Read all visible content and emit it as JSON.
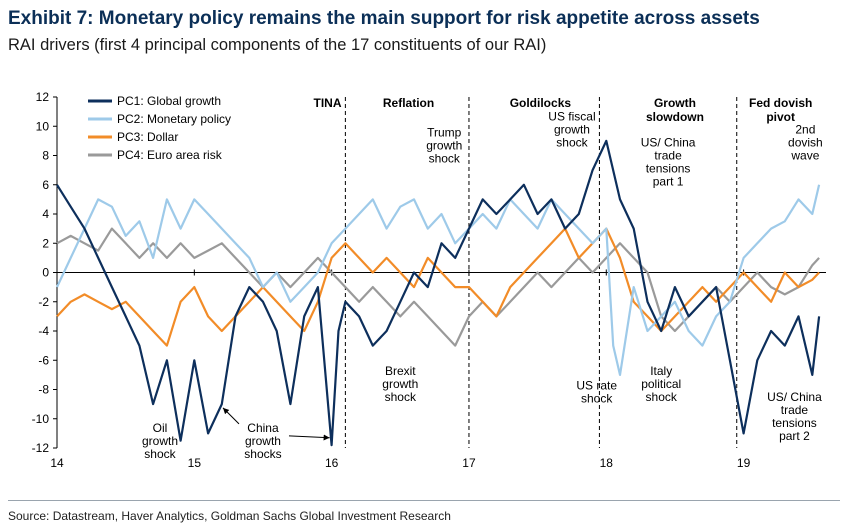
{
  "title": "Exhibit 7: Monetary policy remains the main support for risk appetite across assets",
  "subtitle": "RAI drivers (first 4 principal components of the 17 constituents of our RAI)",
  "source": "Source: Datastream, Haver Analytics, Goldman Sachs Global Investment Research",
  "chart_data": {
    "type": "line",
    "xlim": [
      14,
      19.6
    ],
    "ylim": [
      -12,
      12
    ],
    "x_ticks": [
      14,
      15,
      16,
      17,
      18,
      19
    ],
    "x_tick_labels": [
      "14",
      "15",
      "16",
      "17",
      "18",
      "19"
    ],
    "y_ticks": [
      12,
      10,
      8,
      6,
      4,
      2,
      0,
      -2,
      -4,
      -6,
      -8,
      -10,
      -12
    ],
    "y_tick_labels": [
      "12",
      "10",
      "8",
      "6",
      "4",
      "2",
      "0",
      "-2",
      "-4",
      "-6",
      "-8",
      "-10",
      "-12"
    ],
    "grid": false,
    "legend_position": "top-left",
    "series": [
      {
        "name": "PC1: Global growth",
        "color": "#0d2f5c",
        "x": [
          14.0,
          14.1,
          14.2,
          14.3,
          14.4,
          14.5,
          14.6,
          14.7,
          14.8,
          14.9,
          15.0,
          15.1,
          15.2,
          15.3,
          15.4,
          15.5,
          15.6,
          15.7,
          15.8,
          15.9,
          16.0,
          16.05,
          16.1,
          16.2,
          16.3,
          16.4,
          16.5,
          16.6,
          16.7,
          16.8,
          16.9,
          17.0,
          17.1,
          17.2,
          17.3,
          17.4,
          17.5,
          17.6,
          17.7,
          17.8,
          17.9,
          18.0,
          18.1,
          18.2,
          18.3,
          18.4,
          18.5,
          18.6,
          18.7,
          18.8,
          18.9,
          19.0,
          19.1,
          19.2,
          19.3,
          19.4,
          19.5,
          19.55
        ],
        "y": [
          6,
          4.5,
          3,
          1,
          -1,
          -3,
          -5,
          -9,
          -6,
          -11.5,
          -6,
          -11,
          -9,
          -3,
          -1,
          -2,
          -4,
          -9,
          -3,
          -1,
          -11.8,
          -4,
          -2,
          -3,
          -5,
          -4,
          -2,
          0,
          -1,
          2,
          1,
          3,
          5,
          4,
          5,
          6,
          4,
          5,
          3,
          4,
          7,
          9,
          5,
          3,
          -2,
          -4,
          -1,
          -3,
          -2,
          -1,
          -6,
          -11,
          -6,
          -4,
          -5,
          -3,
          -7,
          -3
        ]
      },
      {
        "name": "PC2: Monetary policy",
        "color": "#9ecae9",
        "x": [
          14.0,
          14.1,
          14.2,
          14.3,
          14.4,
          14.5,
          14.6,
          14.7,
          14.8,
          14.9,
          15.0,
          15.1,
          15.2,
          15.3,
          15.4,
          15.5,
          15.6,
          15.7,
          15.8,
          15.9,
          16.0,
          16.1,
          16.2,
          16.3,
          16.4,
          16.5,
          16.6,
          16.7,
          16.8,
          16.9,
          17.0,
          17.1,
          17.2,
          17.3,
          17.4,
          17.5,
          17.6,
          17.7,
          17.8,
          17.9,
          18.0,
          18.05,
          18.1,
          18.2,
          18.3,
          18.4,
          18.5,
          18.6,
          18.7,
          18.8,
          18.9,
          19.0,
          19.1,
          19.2,
          19.3,
          19.4,
          19.5,
          19.55
        ],
        "y": [
          -1,
          1,
          3,
          5,
          4.5,
          2.5,
          3.5,
          1,
          5,
          3,
          5,
          4,
          3,
          2,
          1,
          -1,
          0,
          -2,
          -1,
          0,
          2,
          3,
          4,
          5,
          3,
          4.5,
          5,
          3,
          4,
          2,
          3,
          4,
          3,
          5,
          4,
          3,
          5,
          4,
          3,
          2,
          3,
          -5,
          -7,
          -1,
          -4,
          -3,
          -2,
          -4,
          -5,
          -3,
          -2,
          1,
          2,
          3,
          3.5,
          5,
          4,
          6
        ]
      },
      {
        "name": "PC3: Dollar",
        "color": "#f28c28",
        "x": [
          14.0,
          14.1,
          14.2,
          14.3,
          14.4,
          14.5,
          14.6,
          14.7,
          14.8,
          14.9,
          15.0,
          15.1,
          15.2,
          15.3,
          15.4,
          15.5,
          15.6,
          15.7,
          15.8,
          15.9,
          16.0,
          16.1,
          16.2,
          16.3,
          16.4,
          16.5,
          16.6,
          16.7,
          16.8,
          16.9,
          17.0,
          17.1,
          17.2,
          17.3,
          17.4,
          17.5,
          17.6,
          17.7,
          17.8,
          17.9,
          18.0,
          18.1,
          18.2,
          18.3,
          18.4,
          18.5,
          18.6,
          18.7,
          18.8,
          18.9,
          19.0,
          19.1,
          19.2,
          19.3,
          19.4,
          19.5,
          19.55
        ],
        "y": [
          -3,
          -2,
          -1.5,
          -2,
          -2.5,
          -2,
          -3,
          -4,
          -5,
          -2,
          -1,
          -3,
          -4,
          -3,
          -2,
          -1,
          -2,
          -3,
          -4,
          -2,
          1,
          2,
          1,
          0,
          1,
          0,
          -1,
          1,
          0,
          -1,
          -1,
          -2,
          -3,
          -1,
          0,
          1,
          2,
          3,
          1,
          2,
          3,
          1,
          -2,
          -3,
          -4,
          -3,
          -2,
          -1,
          -2,
          -1,
          0,
          -1,
          -2,
          0,
          -1,
          -0.5,
          0
        ]
      },
      {
        "name": "PC4: Euro area risk",
        "color": "#9a9a9a",
        "x": [
          14.0,
          14.1,
          14.2,
          14.3,
          14.4,
          14.5,
          14.6,
          14.7,
          14.8,
          14.9,
          15.0,
          15.1,
          15.2,
          15.3,
          15.4,
          15.5,
          15.6,
          15.7,
          15.8,
          15.9,
          16.0,
          16.1,
          16.2,
          16.3,
          16.4,
          16.5,
          16.6,
          16.7,
          16.8,
          16.9,
          17.0,
          17.1,
          17.2,
          17.3,
          17.4,
          17.5,
          17.6,
          17.7,
          17.8,
          17.9,
          18.0,
          18.1,
          18.2,
          18.3,
          18.4,
          18.5,
          18.6,
          18.7,
          18.8,
          18.9,
          19.0,
          19.1,
          19.2,
          19.3,
          19.4,
          19.5,
          19.55
        ],
        "y": [
          2,
          2.5,
          2,
          1.5,
          3,
          2,
          1,
          2,
          1,
          2,
          1,
          1.5,
          2,
          1,
          0,
          -1,
          0,
          -1,
          0,
          1,
          0,
          -1,
          -2,
          -1,
          -2,
          -3,
          -2,
          -3,
          -4,
          -5,
          -3,
          -2,
          -3,
          -2,
          -1,
          0,
          -1,
          0,
          1,
          0,
          1,
          2,
          1,
          0,
          -3,
          -4,
          -3,
          -2,
          -1,
          -2,
          -1,
          0,
          -1,
          -1.5,
          -1,
          0.5,
          1
        ]
      }
    ],
    "phase_dividers_x": [
      16.1,
      17.0,
      17.95,
      18.95
    ],
    "phases": [
      {
        "label_lines": [
          "TINA"
        ],
        "x": 15.97
      },
      {
        "label_lines": [
          "Reflation"
        ],
        "x": 16.56
      },
      {
        "label_lines": [
          "Goldilocks"
        ],
        "x": 17.52
      },
      {
        "label_lines": [
          "Growth",
          "slowdown"
        ],
        "x": 18.5
      },
      {
        "label_lines": [
          "Fed dovish",
          "pivot"
        ],
        "x": 19.27
      }
    ],
    "annotations": [
      {
        "lines": [
          "Trump",
          "growth",
          "shock"
        ],
        "x": 16.82,
        "y": 9.3
      },
      {
        "lines": [
          "US fiscal",
          "growth",
          "shock"
        ],
        "x": 17.75,
        "y": 10.4
      },
      {
        "lines": [
          "US/ China",
          "trade",
          "tensions",
          "part 1"
        ],
        "x": 18.45,
        "y": 8.6
      },
      {
        "lines": [
          "2nd",
          "dovish",
          "wave"
        ],
        "x": 19.45,
        "y": 9.5
      },
      {
        "lines": [
          "Brexit",
          "growth",
          "shock"
        ],
        "x": 16.5,
        "y": -7.0
      },
      {
        "lines": [
          "US rate",
          "shock"
        ],
        "x": 17.93,
        "y": -8.0
      },
      {
        "lines": [
          "Italy",
          "political",
          "shock"
        ],
        "x": 18.4,
        "y": -7.0
      },
      {
        "lines": [
          "US/ China",
          "trade",
          "tensions",
          "part 2"
        ],
        "x": 19.37,
        "y": -8.8
      },
      {
        "lines": [
          "Oil",
          "growth",
          "shock"
        ],
        "x": 14.75,
        "y": -10.9
      },
      {
        "lines": [
          "China",
          "growth",
          "shocks"
        ],
        "x": 15.5,
        "y": -10.9
      }
    ]
  }
}
